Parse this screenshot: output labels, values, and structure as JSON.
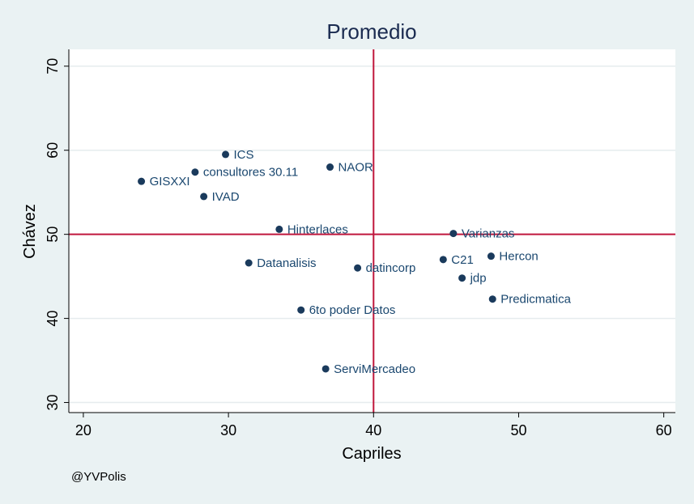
{
  "credit": "@YVPolis",
  "chart_data": {
    "type": "scatter",
    "title": "Promedio",
    "xlabel": "Capriles",
    "ylabel": "Chávez",
    "xlim": [
      19,
      60.8
    ],
    "ylim": [
      28.8,
      72
    ],
    "xticks": [
      20,
      30,
      40,
      50,
      60
    ],
    "yticks": [
      30,
      40,
      50,
      60,
      70
    ],
    "grid": "horizontal",
    "reference_lines": {
      "x": 40,
      "y": 50,
      "color": "#c0163c"
    },
    "marker_color": "#1a3a5c",
    "label_color": "#1a476f",
    "points": [
      {
        "label": "ICS",
        "x": 29.8,
        "y": 59.5
      },
      {
        "label": "consultores 30.11",
        "x": 27.7,
        "y": 57.4
      },
      {
        "label": "GISXXI",
        "x": 24.0,
        "y": 56.3
      },
      {
        "label": "NAOR",
        "x": 37.0,
        "y": 58.0
      },
      {
        "label": "IVAD",
        "x": 28.3,
        "y": 54.5
      },
      {
        "label": "Hinterlaces",
        "x": 33.5,
        "y": 50.6
      },
      {
        "label": "Varianzas",
        "x": 45.5,
        "y": 50.1
      },
      {
        "label": "Datanalisis",
        "x": 31.4,
        "y": 46.6
      },
      {
        "label": "datincorp",
        "x": 38.9,
        "y": 46.0
      },
      {
        "label": "C21",
        "x": 44.8,
        "y": 47.0
      },
      {
        "label": "Hercon",
        "x": 48.1,
        "y": 47.4
      },
      {
        "label": "jdp",
        "x": 46.1,
        "y": 44.8
      },
      {
        "label": "Predicmatica",
        "x": 48.2,
        "y": 42.3
      },
      {
        "label": "6to poder Datos",
        "x": 35.0,
        "y": 41.0
      },
      {
        "label": "ServiMercadeo",
        "x": 36.7,
        "y": 34.0
      }
    ]
  }
}
